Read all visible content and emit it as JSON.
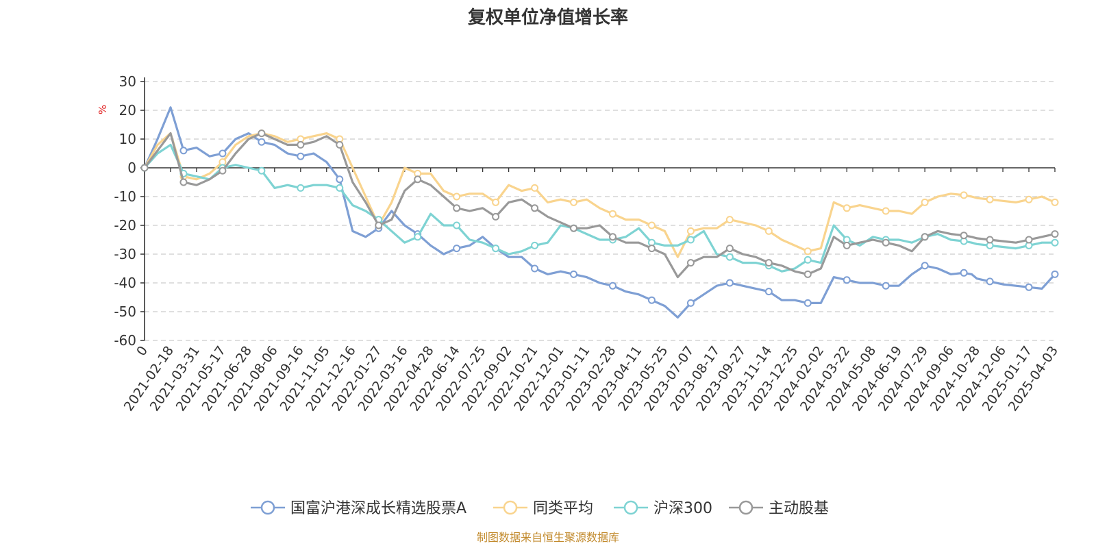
{
  "chart_data": {
    "type": "line",
    "title": "复权单位净值增长率",
    "ylabel": "%",
    "ylim": [
      -60,
      30
    ],
    "yticks": [
      30,
      20,
      10,
      0,
      -10,
      -20,
      -30,
      -40,
      -50,
      -60
    ],
    "grid": true,
    "legend_position": "bottom",
    "x_tick_labels": [
      "0",
      "2021-02-18",
      "2021-03-31",
      "2021-05-17",
      "2021-06-28",
      "2021-08-06",
      "2021-09-16",
      "2021-11-05",
      "2021-12-16",
      "2022-01-27",
      "2022-03-16",
      "2022-04-28",
      "2022-06-14",
      "2022-07-25",
      "2022-09-02",
      "2022-10-21",
      "2022-12-01",
      "2023-01-11",
      "2023-02-28",
      "2023-04-11",
      "2023-05-25",
      "2023-07-07",
      "2023-08-17",
      "2023-09-27",
      "2023-11-14",
      "2023-12-25",
      "2024-02-02",
      "2024-03-22",
      "2024-05-08",
      "2024-06-19",
      "2024-07-29",
      "2024-09-06",
      "2024-10-28",
      "2024-12-06",
      "2025-01-17",
      "2025-04-03"
    ],
    "x_ticks_labeled_every": 1,
    "series": [
      {
        "name": "国富沪港深成长精选股票A",
        "color": "#7e9fd4",
        "x": [
          0,
          0.5,
          1,
          1.5,
          2,
          2.5,
          3,
          3.5,
          4,
          4.5,
          5,
          5.5,
          6,
          6.5,
          7,
          7.5,
          8,
          8.5,
          9,
          9.5,
          10,
          10.5,
          11,
          11.5,
          12,
          12.5,
          13,
          13.5,
          14,
          14.5,
          15,
          15.5,
          16,
          16.5,
          17,
          17.5,
          18,
          18.5,
          19,
          19.5,
          20,
          20.5,
          21,
          21.5,
          22,
          22.5,
          23,
          23.5,
          24,
          24.5,
          25,
          25.5,
          26,
          26.5,
          27,
          27.5,
          28,
          28.5,
          29,
          29.5,
          30,
          30.5,
          31,
          31.5,
          31.8,
          32,
          32.5,
          33,
          33.5,
          34,
          34.5,
          35
        ],
        "y": [
          0,
          10,
          21,
          6,
          7,
          4,
          5,
          10,
          12,
          9,
          8,
          5,
          4,
          5,
          2,
          -4,
          -22,
          -24,
          -21,
          -15,
          -20,
          -23,
          -27,
          -30,
          -28,
          -27,
          -24,
          -28,
          -31,
          -31,
          -35,
          -37,
          -36,
          -37,
          -38,
          -40,
          -41,
          -43,
          -44,
          -46,
          -48,
          -52,
          -47,
          -44,
          -41,
          -40,
          -41,
          -42,
          -43,
          -46,
          -46,
          -47,
          -47,
          -38,
          -39,
          -40,
          -40,
          -41,
          -41,
          -37,
          -34,
          -35,
          -37,
          -36.5,
          -37,
          -38.5,
          -39.5,
          -40.5,
          -41,
          -41.5,
          -42,
          -37
        ],
        "markers_every": 3
      },
      {
        "name": "同类平均",
        "color": "#f9d48e",
        "x": [
          0,
          0.5,
          1,
          1.5,
          2,
          2.5,
          3,
          3.5,
          4,
          4.5,
          5,
          5.5,
          6,
          6.5,
          7,
          7.5,
          8,
          8.5,
          9,
          9.5,
          10,
          10.5,
          11,
          11.5,
          12,
          12.5,
          13,
          13.5,
          14,
          14.5,
          15,
          15.5,
          16,
          16.5,
          17,
          17.5,
          18,
          18.5,
          19,
          19.5,
          20,
          20.5,
          21,
          21.5,
          22,
          22.5,
          23,
          23.5,
          24,
          24.5,
          25,
          25.5,
          26,
          26.5,
          27,
          27.5,
          28,
          28.5,
          29,
          29.5,
          30,
          30.5,
          31,
          31.5,
          31.8,
          32,
          32.5,
          33,
          33.5,
          34,
          34.5,
          35
        ],
        "y": [
          0,
          8,
          12,
          -3,
          -4,
          -2,
          2,
          8,
          11,
          12,
          11,
          9,
          10,
          11,
          12,
          10,
          0,
          -10,
          -20,
          -12,
          0,
          -2,
          -2,
          -8,
          -10,
          -9,
          -9,
          -12,
          -6,
          -8,
          -7,
          -12,
          -11,
          -12,
          -11,
          -14,
          -16,
          -18,
          -18,
          -20,
          -22,
          -31,
          -22,
          -21,
          -21,
          -18,
          -19,
          -20,
          -22,
          -25,
          -27,
          -29,
          -28,
          -12,
          -14,
          -13,
          -14,
          -15,
          -15,
          -16,
          -12,
          -10,
          -9,
          -9.5,
          -10,
          -10.5,
          -11,
          -11.5,
          -12,
          -11,
          -10,
          -12
        ],
        "markers_every": 3
      },
      {
        "name": "沪深300",
        "color": "#7ed3d3",
        "x": [
          0,
          0.5,
          1,
          1.5,
          2,
          2.5,
          3,
          3.5,
          4,
          4.5,
          5,
          5.5,
          6,
          6.5,
          7,
          7.5,
          8,
          8.5,
          9,
          9.5,
          10,
          10.5,
          11,
          11.5,
          12,
          12.5,
          13,
          13.5,
          14,
          14.5,
          15,
          15.5,
          16,
          16.5,
          17,
          17.5,
          18,
          18.5,
          19,
          19.5,
          20,
          20.5,
          21,
          21.5,
          22,
          22.5,
          23,
          23.5,
          24,
          24.5,
          25,
          25.5,
          26,
          26.5,
          27,
          27.5,
          28,
          28.5,
          29,
          29.5,
          30,
          30.5,
          31,
          31.5,
          31.8,
          32,
          32.5,
          33,
          33.5,
          34,
          34.5,
          35
        ],
        "y": [
          0,
          5,
          8,
          -2,
          -3,
          -4,
          0,
          1,
          0,
          -1,
          -7,
          -6,
          -7,
          -6,
          -6,
          -7,
          -13,
          -15,
          -18,
          -22,
          -26,
          -24,
          -16,
          -20,
          -20,
          -25,
          -26,
          -28,
          -30,
          -29,
          -27,
          -26,
          -20,
          -21,
          -23,
          -25,
          -25,
          -24,
          -21,
          -26,
          -27,
          -27,
          -25,
          -22,
          -30,
          -31,
          -33,
          -33,
          -34,
          -36,
          -35,
          -32,
          -33,
          -20,
          -25,
          -27,
          -24,
          -25,
          -25,
          -26,
          -24,
          -23,
          -25,
          -25.5,
          -26,
          -26.5,
          -27,
          -27.5,
          -28,
          -27,
          -26,
          -26
        ],
        "markers_every": 3
      },
      {
        "name": "主动股基",
        "color": "#999999",
        "x": [
          0,
          0.5,
          1,
          1.5,
          2,
          2.5,
          3,
          3.5,
          4,
          4.5,
          5,
          5.5,
          6,
          6.5,
          7,
          7.5,
          8,
          8.5,
          9,
          9.5,
          10,
          10.5,
          11,
          11.5,
          12,
          12.5,
          13,
          13.5,
          14,
          14.5,
          15,
          15.5,
          16,
          16.5,
          17,
          17.5,
          18,
          18.5,
          19,
          19.5,
          20,
          20.5,
          21,
          21.5,
          22,
          22.5,
          23,
          23.5,
          24,
          24.5,
          25,
          25.5,
          26,
          26.5,
          27,
          27.5,
          28,
          28.5,
          29,
          29.5,
          30,
          30.5,
          31,
          31.5,
          31.8,
          32,
          32.5,
          33,
          33.5,
          34,
          34.5,
          35
        ],
        "y": [
          0,
          6,
          12,
          -5,
          -6,
          -4,
          -1,
          5,
          10,
          12,
          10,
          8,
          8,
          9,
          11,
          8,
          -5,
          -12,
          -20,
          -18,
          -8,
          -4,
          -6,
          -10,
          -14,
          -15,
          -14,
          -17,
          -12,
          -11,
          -14,
          -17,
          -19,
          -21,
          -21,
          -20,
          -24,
          -26,
          -26,
          -28,
          -30,
          -38,
          -33,
          -31,
          -31,
          -28,
          -30,
          -31,
          -33,
          -34,
          -36,
          -37,
          -35,
          -24,
          -27,
          -26,
          -25,
          -26,
          -27,
          -29,
          -24,
          -22,
          -23,
          -23.5,
          -24,
          -24.5,
          -25,
          -25.5,
          -26,
          -25,
          -24,
          -23
        ],
        "markers_every": 3
      }
    ]
  },
  "legend": [
    {
      "label": "国富沪港深成长精选股票A",
      "color": "#7e9fd4"
    },
    {
      "label": "同类平均",
      "color": "#f9d48e"
    },
    {
      "label": "沪深300",
      "color": "#7ed3d3"
    },
    {
      "label": "主动股基",
      "color": "#999999"
    }
  ],
  "source_text": "制图数据来自恒生聚源数据库"
}
